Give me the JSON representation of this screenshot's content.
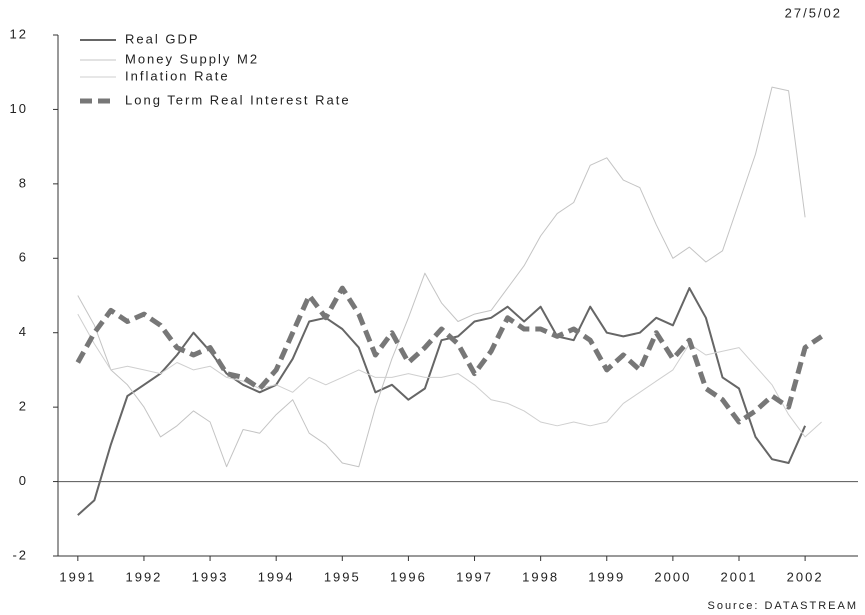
{
  "chart_data": {
    "type": "line",
    "date": "27/5/02",
    "source": "Source: DATASTREAM",
    "x": [
      1991,
      1991.25,
      1991.5,
      1991.75,
      1992,
      1992.25,
      1992.5,
      1992.75,
      1993,
      1993.25,
      1993.5,
      1993.75,
      1994,
      1994.25,
      1994.5,
      1994.75,
      1995,
      1995.25,
      1995.5,
      1995.75,
      1996,
      1996.25,
      1996.5,
      1996.75,
      1997,
      1997.25,
      1997.5,
      1997.75,
      1998,
      1998.25,
      1998.5,
      1998.75,
      1999,
      1999.25,
      1999.5,
      1999.75,
      2000,
      2000.25,
      2000.5,
      2000.75,
      2001,
      2001.25,
      2001.5,
      2001.75,
      2002,
      2002.25
    ],
    "series": [
      {
        "name": "Real GDP",
        "color": "#666666",
        "width": 2,
        "dashed": false,
        "values": [
          -0.9,
          -0.5,
          1.0,
          2.3,
          2.6,
          2.9,
          3.4,
          4.0,
          3.5,
          2.9,
          2.6,
          2.4,
          2.6,
          3.3,
          4.3,
          4.4,
          4.1,
          3.6,
          2.4,
          2.6,
          2.2,
          2.5,
          3.8,
          3.9,
          4.3,
          4.4,
          4.7,
          4.3,
          4.7,
          3.9,
          3.8,
          4.7,
          4.0,
          3.9,
          4.0,
          4.4,
          4.2,
          5.2,
          4.4,
          2.8,
          2.5,
          1.2,
          0.6,
          0.5,
          1.5,
          null
        ]
      },
      {
        "name": "Money Supply M2",
        "color": "#c4c4c4",
        "width": 1,
        "dashed": false,
        "values": [
          5.0,
          4.2,
          3.0,
          2.6,
          2.0,
          1.2,
          1.5,
          1.9,
          1.6,
          0.4,
          1.4,
          1.3,
          1.8,
          2.2,
          1.3,
          1.0,
          0.5,
          0.4,
          2.0,
          3.3,
          4.4,
          5.6,
          4.8,
          4.3,
          4.5,
          4.6,
          5.2,
          5.8,
          6.6,
          7.2,
          7.5,
          8.5,
          8.7,
          8.1,
          7.9,
          6.9,
          6.0,
          6.3,
          5.9,
          6.2,
          7.5,
          8.8,
          10.6,
          10.5,
          7.1,
          null
        ]
      },
      {
        "name": "Inflation Rate",
        "color": "#cfcfcf",
        "width": 1,
        "dashed": false,
        "values": [
          4.5,
          3.7,
          3.0,
          3.1,
          3.0,
          2.9,
          3.2,
          3.0,
          3.1,
          2.8,
          2.7,
          2.5,
          2.6,
          2.4,
          2.8,
          2.6,
          2.8,
          3.0,
          2.8,
          2.8,
          2.9,
          2.8,
          2.8,
          2.9,
          2.6,
          2.2,
          2.1,
          1.9,
          1.6,
          1.5,
          1.6,
          1.5,
          1.6,
          2.1,
          2.4,
          2.7,
          3.0,
          3.7,
          3.4,
          3.5,
          3.6,
          3.1,
          2.6,
          1.8,
          1.2,
          1.6
        ]
      },
      {
        "name": "Long Term Real Interest Rate",
        "color": "#777777",
        "width": 5,
        "dashed": true,
        "values": [
          3.2,
          4.0,
          4.6,
          4.3,
          4.5,
          4.2,
          3.6,
          3.4,
          3.6,
          2.9,
          2.8,
          2.5,
          3.0,
          4.0,
          5.0,
          4.4,
          5.2,
          4.5,
          3.4,
          4.0,
          3.2,
          3.6,
          4.1,
          3.7,
          2.9,
          3.5,
          4.4,
          4.1,
          4.1,
          3.9,
          4.1,
          3.8,
          3.0,
          3.4,
          3.0,
          4.0,
          3.3,
          3.8,
          2.5,
          2.2,
          1.6,
          1.9,
          2.3,
          2.0,
          3.6,
          3.9
        ]
      }
    ],
    "xlim": [
      1990.7,
      2002.8
    ],
    "xticks": [
      1991,
      1992,
      1993,
      1994,
      1995,
      1996,
      1997,
      1998,
      1999,
      2000,
      2001,
      2002
    ],
    "ylim": [
      -2,
      12
    ],
    "yticks": [
      -2,
      0,
      2,
      4,
      6,
      8,
      10,
      12
    ],
    "zero_line": true,
    "legend": "top-left"
  }
}
